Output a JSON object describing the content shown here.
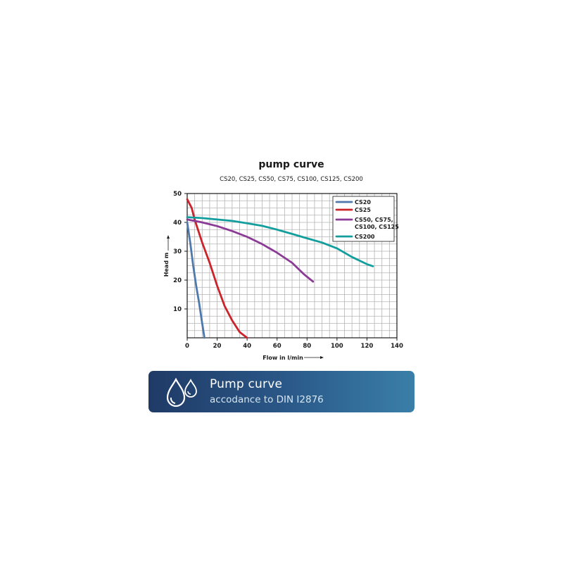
{
  "chart_data": {
    "type": "line",
    "title": "pump curve",
    "subtitle": "CS20, CS25, CS50, CS75, CS100, CS125, CS200",
    "xlabel": "Flow in l/min",
    "ylabel": "Head m",
    "xlim": [
      0,
      140
    ],
    "ylim": [
      0,
      50
    ],
    "xticks": [
      0,
      20,
      40,
      60,
      80,
      100,
      120,
      140
    ],
    "yticks": [
      10,
      20,
      30,
      40,
      50
    ],
    "grid": true,
    "legend_position": "top-right",
    "series": [
      {
        "name": "CS20",
        "color": "#4d79ad",
        "points": [
          [
            0,
            40
          ],
          [
            2,
            33
          ],
          [
            4,
            25
          ],
          [
            6,
            18
          ],
          [
            8,
            12
          ],
          [
            10,
            5
          ],
          [
            11.5,
            0
          ]
        ]
      },
      {
        "name": "CS25",
        "color": "#cc2229",
        "points": [
          [
            0,
            48
          ],
          [
            3,
            45
          ],
          [
            5,
            41
          ],
          [
            10,
            33
          ],
          [
            15,
            26
          ],
          [
            20,
            18
          ],
          [
            25,
            11
          ],
          [
            30,
            6
          ],
          [
            35,
            2
          ],
          [
            40,
            0
          ]
        ]
      },
      {
        "name": "CS50, CS75, CS100, CS125",
        "legend_lines": [
          "CS50, CS75,",
          "CS100, CS125"
        ],
        "color": "#8b3a96",
        "points": [
          [
            0,
            41
          ],
          [
            10,
            40
          ],
          [
            20,
            38.7
          ],
          [
            30,
            37
          ],
          [
            40,
            35
          ],
          [
            50,
            32.5
          ],
          [
            60,
            29.5
          ],
          [
            70,
            26
          ],
          [
            78,
            22
          ],
          [
            84,
            19.5
          ]
        ]
      },
      {
        "name": "CS200",
        "color": "#139e9e",
        "points": [
          [
            0,
            41.8
          ],
          [
            10,
            41.5
          ],
          [
            20,
            41
          ],
          [
            30,
            40.5
          ],
          [
            40,
            39.7
          ],
          [
            50,
            38.8
          ],
          [
            60,
            37.5
          ],
          [
            70,
            36
          ],
          [
            80,
            34.5
          ],
          [
            90,
            33
          ],
          [
            100,
            31
          ],
          [
            110,
            28
          ],
          [
            120,
            25.5
          ],
          [
            124,
            24.8
          ]
        ]
      }
    ]
  },
  "banner": {
    "title": "Pump curve",
    "subtitle": "accodance to DIN I2876",
    "icon": "water-drops-icon",
    "gradient": [
      "#1f3a66",
      "#3a7fa8"
    ]
  }
}
